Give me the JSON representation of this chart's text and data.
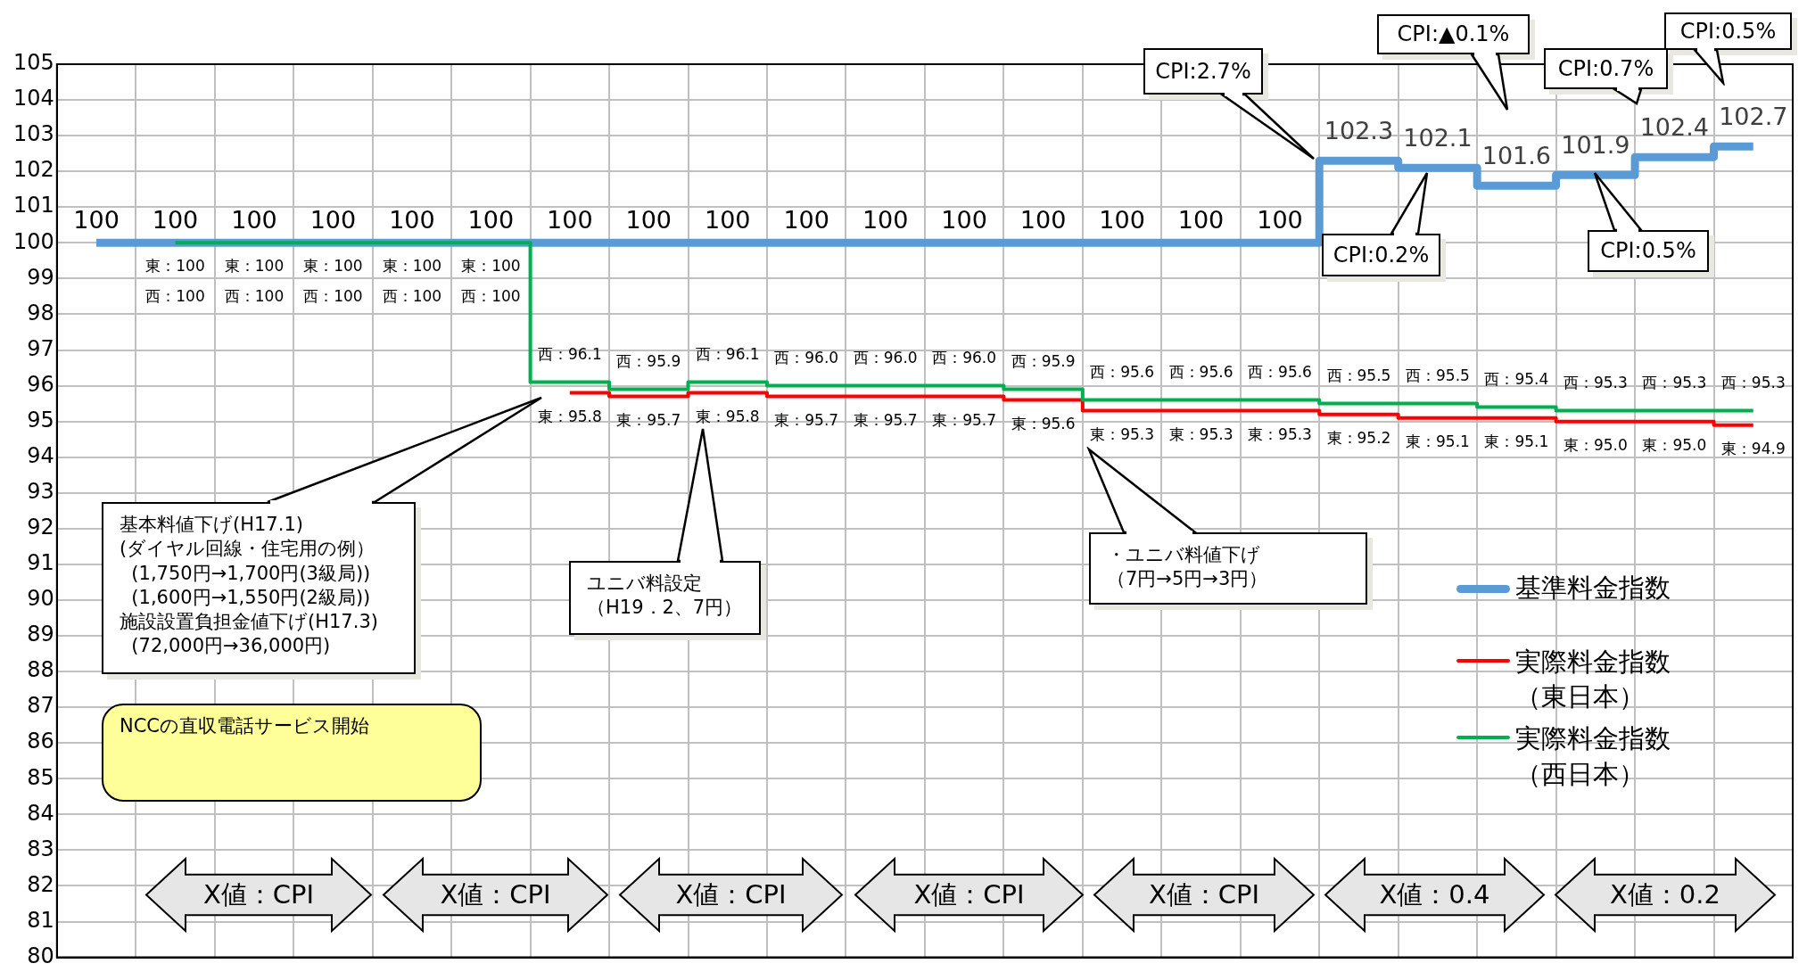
{
  "chart_data": {
    "type": "step",
    "categories": [
      null,
      null,
      null,
      null,
      null,
      null,
      null,
      null,
      null,
      null,
      null,
      null,
      null,
      null,
      null,
      null,
      null,
      null,
      null,
      null,
      null,
      null
    ],
    "series": [
      {
        "name": "基準料金指数",
        "color": "#5b9bd5",
        "values": [
          100,
          100,
          100,
          100,
          100,
          100,
          100,
          100,
          100,
          100,
          100,
          100,
          100,
          100,
          100,
          100,
          102.3,
          102.1,
          101.6,
          101.9,
          102.4,
          102.7
        ],
        "value_labels": [
          "100",
          "100",
          "100",
          "100",
          "100",
          "100",
          "100",
          "100",
          "100",
          "100",
          "100",
          "100",
          "100",
          "100",
          "100",
          "100",
          "102.3",
          "102.1",
          "101.6",
          "101.9",
          "102.4",
          "102.7"
        ]
      },
      {
        "name": "実際料金指数（東日本）",
        "color": "#ff0000",
        "values": [
          null,
          null,
          null,
          null,
          null,
          null,
          95.8,
          95.7,
          95.8,
          95.7,
          95.7,
          95.7,
          95.6,
          95.3,
          95.3,
          95.3,
          95.2,
          95.1,
          95.1,
          95.0,
          95.0,
          94.9
        ],
        "value_labels": [
          null,
          "東：100",
          "東：100",
          "東：100",
          "東：100",
          "東：100",
          "東：95.8",
          "東：95.7",
          "東：95.8",
          "東：95.7",
          "東：95.7",
          "東：95.7",
          "東：95.6",
          "東：95.3",
          "東：95.3",
          "東：95.3",
          "東：95.2",
          "東：95.1",
          "東：95.1",
          "東：95.0",
          "東：95.0",
          "東：94.9"
        ]
      },
      {
        "name": "実際料金指数（西日本）",
        "color": "#00b050",
        "values": [
          null,
          100,
          100,
          100,
          100,
          100,
          96.1,
          95.9,
          96.1,
          96.0,
          96.0,
          96.0,
          95.9,
          95.6,
          95.6,
          95.6,
          95.5,
          95.5,
          95.4,
          95.3,
          95.3,
          95.3
        ],
        "value_labels": [
          null,
          "西：100",
          "西：100",
          "西：100",
          "西：100",
          "西：100",
          "西：96.1",
          "西：95.9",
          "西：96.1",
          "西：96.0",
          "西：96.0",
          "西：96.0",
          "西：95.9",
          "西：95.6",
          "西：95.6",
          "西：95.6",
          "西：95.5",
          "西：95.5",
          "西：95.4",
          "西：95.3",
          "西：95.3",
          "西：95.3"
        ]
      }
    ],
    "ylim": [
      80,
      105
    ],
    "yticks": [
      80,
      81,
      82,
      83,
      84,
      85,
      86,
      87,
      88,
      89,
      90,
      91,
      92,
      93,
      94,
      95,
      96,
      97,
      98,
      99,
      100,
      101,
      102,
      103,
      104,
      105
    ],
    "grid": true,
    "legend": "right",
    "annotations": [
      "CPI:2.7%",
      "CPI:0.2%",
      "CPI:▲0.1%",
      "CPI:0.5%",
      "CPI:0.7%",
      "CPI:0.5%",
      "基本料値下げ(H17.1)\n(ダイヤル回線・住宅用の例）\n  (1,750円→1,700円(3級局))\n  (1,600円→1,550円(2級局))\n施設設置負担金値下げ(H17.3)\n  (72,000円→36,000円)",
      "ユニバ料設定",
      "（H19．2、7円）",
      "・ユニバ料値下げ",
      "（7円→5円→3円）",
      "NCCの直収電話サービス開始",
      "X値：CPI",
      "X値：CPI",
      "X値：CPI",
      "X値：CPI",
      "X値：CPI",
      "X値：0.4",
      "X値：0.2"
    ]
  }
}
